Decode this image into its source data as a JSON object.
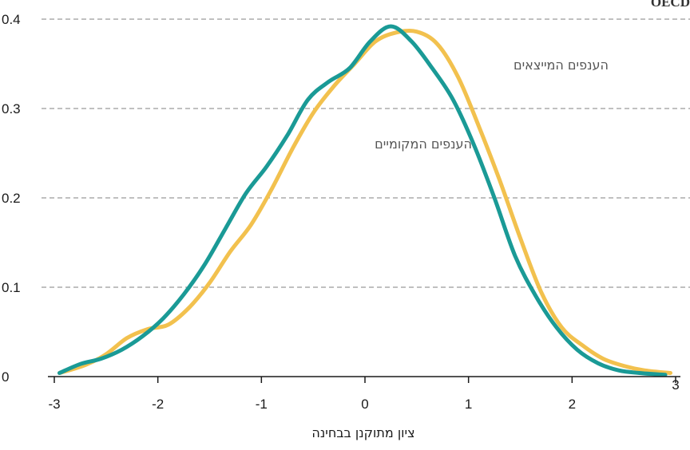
{
  "corner_text": "OECD",
  "chart_data": {
    "type": "line",
    "title": "",
    "xlabel": "ציון מתוקנן בבחינה",
    "ylabel": "",
    "xlim": [
      -3,
      3
    ],
    "ylim": [
      0,
      0.4
    ],
    "x_ticks": [
      -3,
      -2,
      -1,
      0,
      1,
      2,
      3
    ],
    "x_tick_labels": [
      "-3",
      "-2",
      "-1",
      "0",
      "1",
      "2",
      "3"
    ],
    "y_ticks": [
      0,
      0.1,
      0.2,
      0.3,
      0.4
    ],
    "y_tick_labels": [
      "0",
      "0.1",
      "0.2",
      "0.3",
      "0.4"
    ],
    "grid": "horizontal dashed",
    "colors": {
      "exporting": "#F2C14E",
      "local": "#1A9A96",
      "grid": "#9a9a9a",
      "axis": "#1a1a1a",
      "label_text": "#555555"
    },
    "series": [
      {
        "name": "הענפים המייצאים",
        "color": "#F2C14E",
        "points": [
          [
            -2.95,
            0.004
          ],
          [
            -2.7,
            0.013
          ],
          [
            -2.5,
            0.025
          ],
          [
            -2.3,
            0.043
          ],
          [
            -2.1,
            0.053
          ],
          [
            -1.9,
            0.058
          ],
          [
            -1.7,
            0.077
          ],
          [
            -1.5,
            0.105
          ],
          [
            -1.3,
            0.14
          ],
          [
            -1.1,
            0.17
          ],
          [
            -0.9,
            0.21
          ],
          [
            -0.7,
            0.255
          ],
          [
            -0.5,
            0.295
          ],
          [
            -0.3,
            0.325
          ],
          [
            -0.1,
            0.35
          ],
          [
            0.1,
            0.375
          ],
          [
            0.3,
            0.385
          ],
          [
            0.5,
            0.386
          ],
          [
            0.7,
            0.372
          ],
          [
            0.9,
            0.335
          ],
          [
            1.1,
            0.28
          ],
          [
            1.3,
            0.22
          ],
          [
            1.5,
            0.155
          ],
          [
            1.7,
            0.095
          ],
          [
            1.9,
            0.055
          ],
          [
            2.1,
            0.035
          ],
          [
            2.3,
            0.02
          ],
          [
            2.5,
            0.012
          ],
          [
            2.7,
            0.007
          ],
          [
            2.95,
            0.004
          ]
        ]
      },
      {
        "name": "הענפים המקומיים",
        "color": "#1A9A96",
        "points": [
          [
            -2.95,
            0.004
          ],
          [
            -2.75,
            0.014
          ],
          [
            -2.55,
            0.02
          ],
          [
            -2.35,
            0.03
          ],
          [
            -2.15,
            0.045
          ],
          [
            -1.95,
            0.065
          ],
          [
            -1.75,
            0.092
          ],
          [
            -1.55,
            0.125
          ],
          [
            -1.35,
            0.165
          ],
          [
            -1.15,
            0.205
          ],
          [
            -0.95,
            0.235
          ],
          [
            -0.75,
            0.27
          ],
          [
            -0.55,
            0.31
          ],
          [
            -0.35,
            0.33
          ],
          [
            -0.15,
            0.345
          ],
          [
            0.05,
            0.375
          ],
          [
            0.25,
            0.392
          ],
          [
            0.45,
            0.375
          ],
          [
            0.65,
            0.345
          ],
          [
            0.85,
            0.31
          ],
          [
            1.05,
            0.26
          ],
          [
            1.25,
            0.2
          ],
          [
            1.45,
            0.135
          ],
          [
            1.65,
            0.09
          ],
          [
            1.85,
            0.055
          ],
          [
            2.05,
            0.03
          ],
          [
            2.25,
            0.015
          ],
          [
            2.45,
            0.007
          ],
          [
            2.65,
            0.004
          ],
          [
            2.9,
            0.002
          ]
        ]
      }
    ]
  }
}
